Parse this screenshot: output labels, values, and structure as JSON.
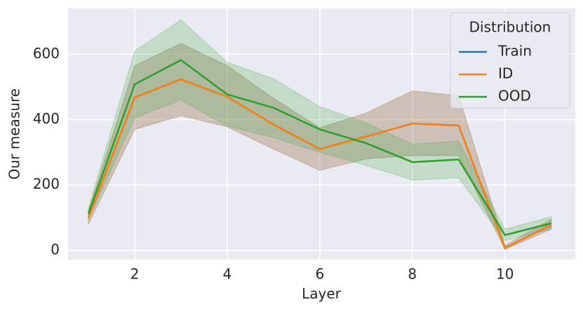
{
  "chart_data": {
    "type": "line",
    "x_label": "Layer",
    "y_label": "Our measure",
    "x": [
      1,
      2,
      3,
      4,
      5,
      6,
      7,
      8,
      9,
      10,
      11
    ],
    "series": [
      {
        "name": "Train",
        "color": "#1f77b4",
        "values": [
          100,
          468,
          523,
          470,
          385,
          310,
          348,
          388,
          382,
          8,
          78
        ],
        "lower": [
          80,
          370,
          412,
          378,
          310,
          245,
          280,
          290,
          290,
          3,
          65
        ],
        "upper": [
          120,
          565,
          633,
          565,
          465,
          375,
          420,
          488,
          473,
          15,
          95
        ]
      },
      {
        "name": "ID",
        "color": "#ff7f0e",
        "values": [
          100,
          468,
          523,
          470,
          385,
          310,
          348,
          388,
          382,
          8,
          78
        ],
        "lower": [
          80,
          370,
          412,
          378,
          310,
          245,
          280,
          290,
          290,
          3,
          65
        ],
        "upper": [
          120,
          565,
          633,
          565,
          465,
          375,
          420,
          488,
          473,
          15,
          95
        ]
      },
      {
        "name": "OOD",
        "color": "#2ca02c",
        "values": [
          112,
          508,
          582,
          477,
          436,
          370,
          328,
          270,
          278,
          47,
          83
        ],
        "lower": [
          95,
          405,
          460,
          380,
          345,
          300,
          260,
          215,
          222,
          30,
          65
        ],
        "upper": [
          130,
          610,
          705,
          575,
          525,
          440,
          390,
          325,
          335,
          65,
          103
        ]
      }
    ],
    "xlim": [
      0.56,
      11.52
    ],
    "xticks": [
      2,
      4,
      6,
      8,
      10
    ],
    "ylim": [
      -28,
      740
    ],
    "yticks": [
      0,
      200,
      400,
      600
    ],
    "grid": true,
    "legend_title": "Distribution",
    "legend_position": "upper right"
  }
}
